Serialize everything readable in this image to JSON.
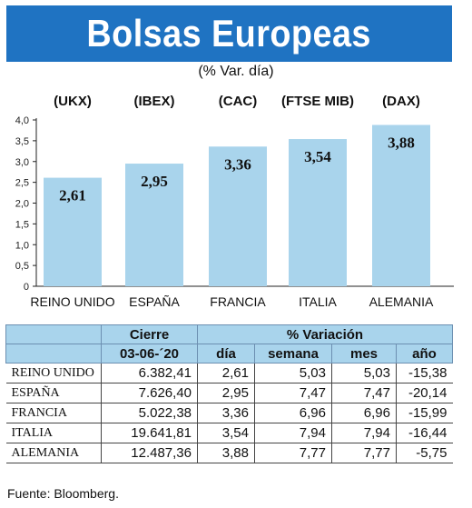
{
  "title": "Bolsas Europeas",
  "subtitle": "(% Var. día)",
  "source": "Fuente: Bloomberg.",
  "colors": {
    "title_bg": "#1f73c2",
    "bar": "#a9d4ec",
    "table_header": "#a9d4ec"
  },
  "chart_data": {
    "type": "bar",
    "title": "Bolsas Europeas",
    "subtitle": "(% Var. día)",
    "categories": [
      "REINO UNIDO",
      "ESPAÑA",
      "FRANCIA",
      "ITALIA",
      "ALEMANIA"
    ],
    "index_labels": [
      "(UKX)",
      "(IBEX)",
      "(CAC)",
      "(FTSE MIB)",
      "(DAX)"
    ],
    "values": [
      2.61,
      2.95,
      3.36,
      3.54,
      3.88
    ],
    "value_labels": [
      "2,61",
      "2,95",
      "3,36",
      "3,54",
      "3,88"
    ],
    "ylim": [
      0,
      4.0
    ],
    "yticks": [
      "0",
      "0,5",
      "1,0",
      "1,5",
      "2,0",
      "2,5",
      "3,0",
      "3,5",
      "4,0"
    ],
    "grid": false,
    "legend": "none"
  },
  "table": {
    "group_headers": {
      "cierre": "Cierre",
      "variacion": "% Variación"
    },
    "column_headers": {
      "cierre_date": "03-06-´20",
      "dia": "día",
      "semana": "semana",
      "mes": "mes",
      "ano": "año"
    },
    "rows": [
      {
        "name": "REINO UNIDO",
        "cierre": "6.382,41",
        "dia": "2,61",
        "semana": "5,03",
        "mes": "5,03",
        "ano": "-15,38"
      },
      {
        "name": "ESPAÑA",
        "cierre": "7.626,40",
        "dia": "2,95",
        "semana": "7,47",
        "mes": "7,47",
        "ano": "-20,14"
      },
      {
        "name": "FRANCIA",
        "cierre": "5.022,38",
        "dia": "3,36",
        "semana": "6,96",
        "mes": "6,96",
        "ano": "-15,99"
      },
      {
        "name": "ITALIA",
        "cierre": "19.641,81",
        "dia": "3,54",
        "semana": "7,94",
        "mes": "7,94",
        "ano": "-16,44"
      },
      {
        "name": "ALEMANIA",
        "cierre": "12.487,36",
        "dia": "3,88",
        "semana": "7,77",
        "mes": "7,77",
        "ano": "-5,75"
      }
    ]
  }
}
